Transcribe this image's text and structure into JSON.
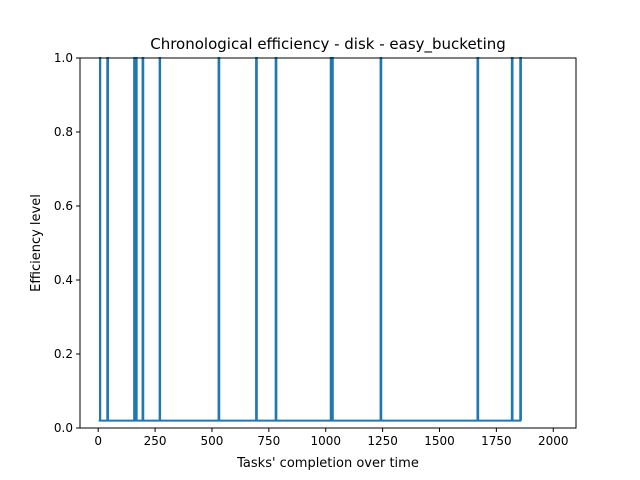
{
  "chart_data": {
    "type": "line",
    "title": "Chronological efficiency - disk - easy_bucketing",
    "xlabel": "Tasks' completion over time",
    "ylabel": "Efficiency level",
    "xlim": [
      -80,
      2100
    ],
    "ylim": [
      0.0,
      1.0
    ],
    "xticks": [
      0,
      250,
      500,
      750,
      1000,
      1250,
      1500,
      1750,
      2000
    ],
    "yticks": [
      0.0,
      0.2,
      0.4,
      0.6,
      0.8,
      1.0
    ],
    "xtick_labels": [
      "0",
      "250",
      "500",
      "750",
      "1000",
      "1250",
      "1500",
      "1750",
      "2000"
    ],
    "ytick_labels": [
      "0.0",
      "0.2",
      "0.4",
      "0.6",
      "0.8",
      "1.0"
    ],
    "grid": false,
    "series": [
      {
        "color": "#1f77b4",
        "x": [
          2,
          8,
          8,
          9,
          9,
          40,
          40,
          43,
          43,
          158,
          158,
          160,
          160,
          166,
          166,
          169,
          169,
          195,
          195,
          198,
          198,
          270,
          270,
          272,
          272,
          529,
          529,
          532,
          532,
          694,
          694,
          697,
          697,
          780,
          780,
          783,
          783,
          1022,
          1022,
          1025,
          1025,
          1028,
          1028,
          1031,
          1031,
          1241,
          1241,
          1244,
          1244,
          1667,
          1667,
          1670,
          1670,
          1818,
          1818,
          1821,
          1821,
          1855,
          1855,
          1858,
          1858
        ],
        "y": [
          0.02,
          0.02,
          1.0,
          1.0,
          0.02,
          0.02,
          1.0,
          1.0,
          0.02,
          0.02,
          1.0,
          1.0,
          0.02,
          0.02,
          1.0,
          1.0,
          0.02,
          0.02,
          1.0,
          1.0,
          0.02,
          0.02,
          1.0,
          1.0,
          0.02,
          0.02,
          1.0,
          1.0,
          0.02,
          0.02,
          1.0,
          1.0,
          0.02,
          0.02,
          1.0,
          1.0,
          0.02,
          0.02,
          1.0,
          1.0,
          0.02,
          0.02,
          1.0,
          1.0,
          0.02,
          0.02,
          1.0,
          1.0,
          0.02,
          0.02,
          1.0,
          1.0,
          0.02,
          0.02,
          1.0,
          1.0,
          0.02,
          0.02,
          1.0,
          1.0,
          0.02
        ]
      }
    ]
  }
}
